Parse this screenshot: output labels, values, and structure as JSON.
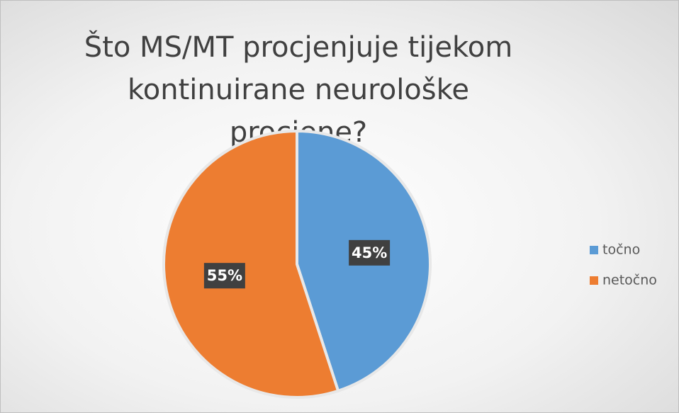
{
  "chart_data": {
    "type": "pie",
    "title": "Što MS/MT procjenjuje tijekom kontinuirane neurološke procjene?",
    "categories": [
      "točno",
      "netočno"
    ],
    "values": [
      45,
      55
    ],
    "value_labels": [
      "45%",
      "55%"
    ],
    "colors": [
      "#5b9bd5",
      "#ed7d31"
    ],
    "legend": "right"
  }
}
